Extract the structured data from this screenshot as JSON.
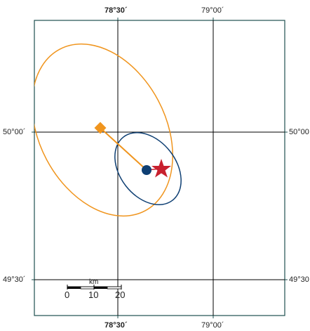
{
  "map": {
    "top_labels": [
      "78°30´",
      "79°00´"
    ],
    "bottom_labels": [
      "78°30´",
      "79°00´"
    ],
    "left_labels": [
      "50°00´",
      "49°30´"
    ],
    "right_labels": [
      "50°00",
      "49°30"
    ],
    "scalebar": {
      "unit": "km",
      "ticks": [
        "0",
        "10",
        "20"
      ]
    },
    "colors": {
      "frame": "#1f4f4f",
      "graticule": "#000000",
      "ellipse_orange": "#f0951e",
      "ellipse_blue": "#0e3f73",
      "diamond": "#f0951e",
      "circle": "#0e3f73",
      "star": "#c8202e"
    },
    "markers": [
      {
        "name": "diamond-marker",
        "shape": "diamond"
      },
      {
        "name": "circle-marker",
        "shape": "circle"
      },
      {
        "name": "star-marker",
        "shape": "star"
      }
    ]
  }
}
